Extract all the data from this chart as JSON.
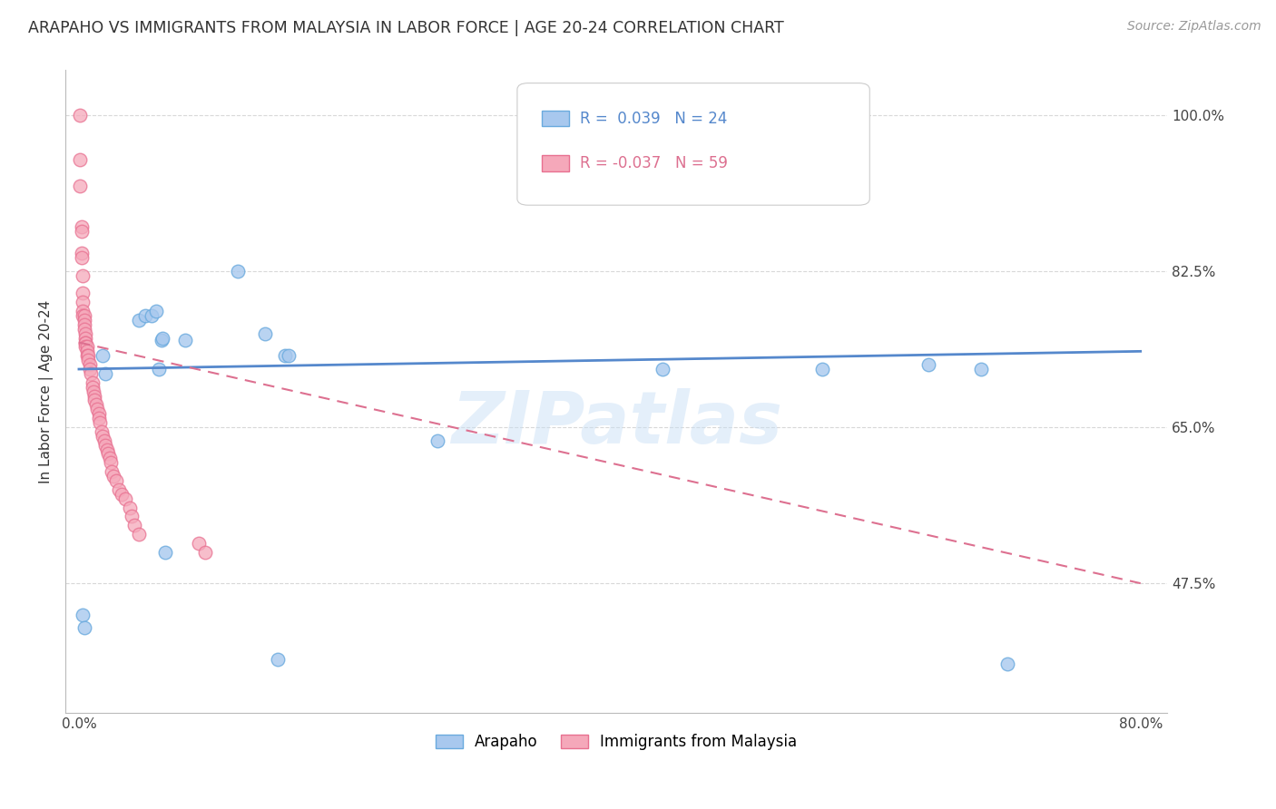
{
  "title": "ARAPAHO VS IMMIGRANTS FROM MALAYSIA IN LABOR FORCE | AGE 20-24 CORRELATION CHART",
  "source": "Source: ZipAtlas.com",
  "ylabel": "In Labor Force | Age 20-24",
  "x_min": 0.0,
  "x_max": 0.8,
  "y_min": 0.33,
  "y_max": 1.05,
  "y_ticks": [
    0.475,
    0.65,
    0.825,
    1.0
  ],
  "y_tick_labels": [
    "47.5%",
    "65.0%",
    "82.5%",
    "100.0%"
  ],
  "blue_R": 0.039,
  "blue_N": 24,
  "pink_R": -0.037,
  "pink_N": 59,
  "blue_color": "#a8c8ee",
  "pink_color": "#f5a8ba",
  "blue_edge_color": "#6aaade",
  "pink_edge_color": "#e87090",
  "blue_line_color": "#5588cc",
  "pink_line_color": "#dd7090",
  "watermark": "ZIPatlas",
  "blue_line_x0": 0.0,
  "blue_line_x1": 0.8,
  "blue_line_y0": 0.715,
  "blue_line_y1": 0.735,
  "pink_line_x0": 0.0,
  "pink_line_x1": 0.8,
  "pink_line_y0": 0.745,
  "pink_line_y1": 0.475,
  "grid_color": "#d8d8d8",
  "background_color": "#ffffff",
  "blue_x": [
    0.003,
    0.004,
    0.018,
    0.02,
    0.045,
    0.05,
    0.055,
    0.058,
    0.06,
    0.062,
    0.063,
    0.065,
    0.08,
    0.12,
    0.14,
    0.155,
    0.158,
    0.27,
    0.44,
    0.56,
    0.64,
    0.68,
    0.7,
    0.15
  ],
  "blue_y": [
    0.44,
    0.425,
    0.73,
    0.71,
    0.77,
    0.775,
    0.775,
    0.78,
    0.715,
    0.748,
    0.75,
    0.51,
    0.748,
    0.825,
    0.755,
    0.73,
    0.73,
    0.635,
    0.715,
    0.715,
    0.72,
    0.715,
    0.385,
    0.39
  ],
  "pink_x": [
    0.001,
    0.001,
    0.001,
    0.002,
    0.002,
    0.002,
    0.002,
    0.003,
    0.003,
    0.003,
    0.003,
    0.003,
    0.004,
    0.004,
    0.004,
    0.004,
    0.005,
    0.005,
    0.005,
    0.005,
    0.005,
    0.006,
    0.006,
    0.006,
    0.007,
    0.007,
    0.008,
    0.008,
    0.009,
    0.01,
    0.01,
    0.011,
    0.012,
    0.012,
    0.013,
    0.014,
    0.015,
    0.015,
    0.016,
    0.017,
    0.018,
    0.019,
    0.02,
    0.021,
    0.022,
    0.023,
    0.024,
    0.025,
    0.026,
    0.028,
    0.03,
    0.032,
    0.035,
    0.038,
    0.04,
    0.042,
    0.045,
    0.09,
    0.095
  ],
  "pink_y": [
    1.0,
    0.95,
    0.92,
    0.875,
    0.87,
    0.845,
    0.84,
    0.82,
    0.8,
    0.79,
    0.78,
    0.775,
    0.775,
    0.77,
    0.765,
    0.76,
    0.755,
    0.75,
    0.745,
    0.745,
    0.74,
    0.74,
    0.735,
    0.73,
    0.73,
    0.725,
    0.72,
    0.715,
    0.71,
    0.7,
    0.695,
    0.69,
    0.685,
    0.68,
    0.675,
    0.67,
    0.665,
    0.66,
    0.655,
    0.645,
    0.64,
    0.635,
    0.63,
    0.625,
    0.62,
    0.615,
    0.61,
    0.6,
    0.595,
    0.59,
    0.58,
    0.575,
    0.57,
    0.56,
    0.55,
    0.54,
    0.53,
    0.52,
    0.51
  ]
}
